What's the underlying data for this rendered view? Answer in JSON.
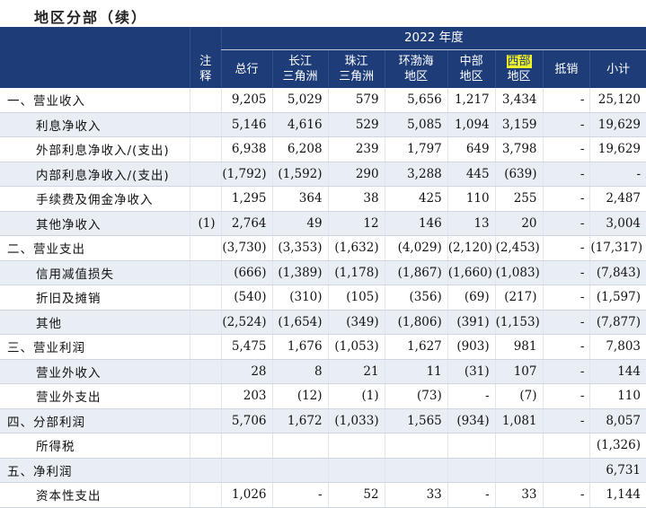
{
  "title": "地区分部（续）",
  "header": {
    "year": "2022 年度",
    "columns": [
      {
        "key": "note",
        "lines": [
          "注",
          "释"
        ]
      },
      {
        "key": "total",
        "lines": [
          "总行"
        ]
      },
      {
        "key": "cj",
        "lines": [
          "长江",
          "三角洲"
        ]
      },
      {
        "key": "zj",
        "lines": [
          "珠江",
          "三角洲"
        ]
      },
      {
        "key": "hb",
        "lines": [
          "环渤海",
          "地区"
        ]
      },
      {
        "key": "zb",
        "lines": [
          "中部",
          "地区"
        ]
      },
      {
        "key": "xb",
        "lines": [
          "西部",
          "地区"
        ],
        "highlight": "西部"
      },
      {
        "key": "dx",
        "lines": [
          "抵销"
        ]
      },
      {
        "key": "sub",
        "lines": [
          "小计"
        ]
      }
    ]
  },
  "rows": [
    {
      "label": "一、营业收入",
      "indent": false,
      "shade": false,
      "values": [
        "",
        "9,205",
        "5,029",
        "579",
        "5,656",
        "1,217",
        "3,434",
        "-",
        "25,120"
      ]
    },
    {
      "label": "利息净收入",
      "indent": true,
      "shade": true,
      "values": [
        "",
        "5,146",
        "4,616",
        "529",
        "5,085",
        "1,094",
        "3,159",
        "-",
        "19,629"
      ]
    },
    {
      "label": "外部利息净收入/(支出)",
      "indent": true,
      "shade": false,
      "values": [
        "",
        "6,938",
        "6,208",
        "239",
        "1,797",
        "649",
        "3,798",
        "-",
        "19,629"
      ]
    },
    {
      "label": "内部利息净收入/(支出)",
      "indent": true,
      "shade": true,
      "values": [
        "",
        "(1,792)",
        "(1,592)",
        "290",
        "3,288",
        "445",
        "(639)",
        "-",
        "-"
      ]
    },
    {
      "label": "手续费及佣金净收入",
      "indent": true,
      "shade": false,
      "values": [
        "",
        "1,295",
        "364",
        "38",
        "425",
        "110",
        "255",
        "-",
        "2,487"
      ]
    },
    {
      "label": "其他净收入",
      "indent": true,
      "shade": true,
      "values": [
        "(1)",
        "2,764",
        "49",
        "12",
        "146",
        "13",
        "20",
        "-",
        "3,004"
      ]
    },
    {
      "label": "二、营业支出",
      "indent": false,
      "shade": false,
      "values": [
        "",
        "(3,730)",
        "(3,353)",
        "(1,632)",
        "(4,029)",
        "(2,120)",
        "(2,453)",
        "-",
        "(17,317)"
      ]
    },
    {
      "label": "信用减值损失",
      "indent": true,
      "shade": true,
      "values": [
        "",
        "(666)",
        "(1,389)",
        "(1,178)",
        "(1,867)",
        "(1,660)",
        "(1,083)",
        "-",
        "(7,843)"
      ]
    },
    {
      "label": "折旧及摊销",
      "indent": true,
      "shade": false,
      "values": [
        "",
        "(540)",
        "(310)",
        "(105)",
        "(356)",
        "(69)",
        "(217)",
        "-",
        "(1,597)"
      ]
    },
    {
      "label": "其他",
      "indent": true,
      "shade": true,
      "values": [
        "",
        "(2,524)",
        "(1,654)",
        "(349)",
        "(1,806)",
        "(391)",
        "(1,153)",
        "-",
        "(7,877)"
      ]
    },
    {
      "label": "三、营业利润",
      "indent": false,
      "shade": false,
      "values": [
        "",
        "5,475",
        "1,676",
        "(1,053)",
        "1,627",
        "(903)",
        "981",
        "-",
        "7,803"
      ]
    },
    {
      "label": "营业外收入",
      "indent": true,
      "shade": true,
      "values": [
        "",
        "28",
        "8",
        "21",
        "11",
        "(31)",
        "107",
        "-",
        "144"
      ]
    },
    {
      "label": "营业外支出",
      "indent": true,
      "shade": false,
      "values": [
        "",
        "203",
        "(12)",
        "(1)",
        "(73)",
        "-",
        "(7)",
        "-",
        "110"
      ]
    },
    {
      "label": "四、分部利润",
      "indent": false,
      "shade": true,
      "values": [
        "",
        "5,706",
        "1,672",
        "(1,033)",
        "1,565",
        "(934)",
        "1,081",
        "-",
        "8,057"
      ]
    },
    {
      "label": "所得税",
      "indent": true,
      "shade": false,
      "values": [
        "",
        "",
        "",
        "",
        "",
        "",
        "",
        "",
        "(1,326)"
      ]
    },
    {
      "label": "五、净利润",
      "indent": false,
      "shade": true,
      "values": [
        "",
        "",
        "",
        "",
        "",
        "",
        "",
        "",
        "6,731"
      ]
    },
    {
      "label": "资本性支出",
      "indent": true,
      "shade": false,
      "values": [
        "",
        "1,026",
        "-",
        "52",
        "33",
        "-",
        "33",
        "-",
        "1,144"
      ]
    }
  ]
}
